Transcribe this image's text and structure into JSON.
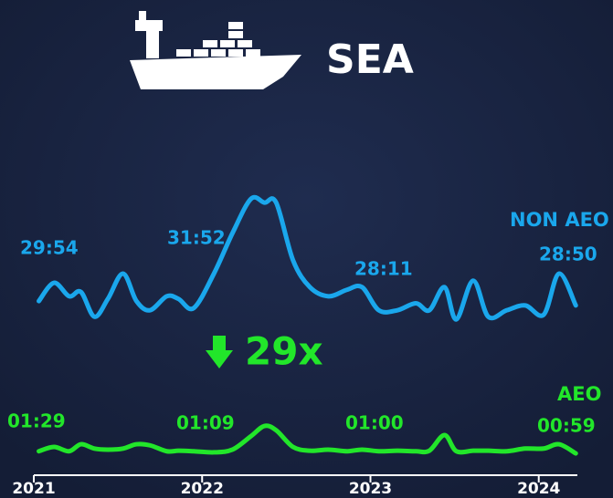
{
  "chart_data": {
    "type": "line",
    "title": "SEA",
    "callout": "29x",
    "xlim": [
      2021,
      2024.3
    ],
    "xticks": [
      2021,
      2022,
      2023,
      2024
    ],
    "ylim": [
      0,
      60
    ],
    "series": [
      {
        "name": "NON AEO",
        "color": "#1aa7ec",
        "labels": [
          "29:54",
          "31:52",
          "28:11",
          "28:50"
        ],
        "x": [
          2021.03,
          2021.12,
          2021.21,
          2021.28,
          2021.36,
          2021.44,
          2021.53,
          2021.61,
          2021.69,
          2021.79,
          2021.86,
          2021.95,
          2022.07,
          2022.18,
          2022.29,
          2022.37,
          2022.44,
          2022.54,
          2022.64,
          2022.75,
          2022.86,
          2022.95,
          2023.05,
          2023.16,
          2023.27,
          2023.35,
          2023.44,
          2023.51,
          2023.61,
          2023.7,
          2023.81,
          2023.92,
          2024.03,
          2024.12,
          2024.22
        ],
        "values": [
          29.3,
          32.7,
          30.2,
          31.0,
          26.4,
          29.7,
          34.4,
          29.3,
          27.6,
          30.2,
          29.7,
          28.0,
          34.4,
          41.9,
          48.3,
          47.6,
          47.6,
          36.9,
          31.9,
          30.2,
          31.4,
          31.9,
          27.6,
          27.6,
          28.9,
          27.6,
          31.9,
          25.9,
          33.1,
          26.4,
          27.6,
          28.5,
          26.8,
          34.4,
          28.5
        ]
      },
      {
        "name": "AEO",
        "color": "#22e62a",
        "labels": [
          "01:29",
          "01:09",
          "01:00",
          "00:59"
        ],
        "x": [
          2021.03,
          2021.12,
          2021.21,
          2021.28,
          2021.36,
          2021.44,
          2021.53,
          2021.61,
          2021.69,
          2021.79,
          2021.86,
          2021.95,
          2022.07,
          2022.18,
          2022.29,
          2022.37,
          2022.44,
          2022.54,
          2022.64,
          2022.75,
          2022.86,
          2022.95,
          2023.05,
          2023.16,
          2023.27,
          2023.35,
          2023.44,
          2023.51,
          2023.61,
          2023.7,
          2023.81,
          2023.92,
          2024.03,
          2024.12,
          2024.22
        ],
        "values": [
          1.4,
          2.2,
          1.4,
          2.7,
          1.9,
          1.7,
          1.9,
          2.7,
          2.5,
          1.4,
          1.5,
          1.4,
          1.2,
          1.7,
          4.2,
          6.1,
          5.3,
          2.2,
          1.5,
          1.7,
          1.4,
          1.7,
          1.4,
          1.5,
          1.4,
          1.5,
          4.4,
          1.4,
          1.5,
          1.5,
          1.4,
          1.9,
          1.9,
          2.7,
          1.0
        ]
      }
    ]
  }
}
